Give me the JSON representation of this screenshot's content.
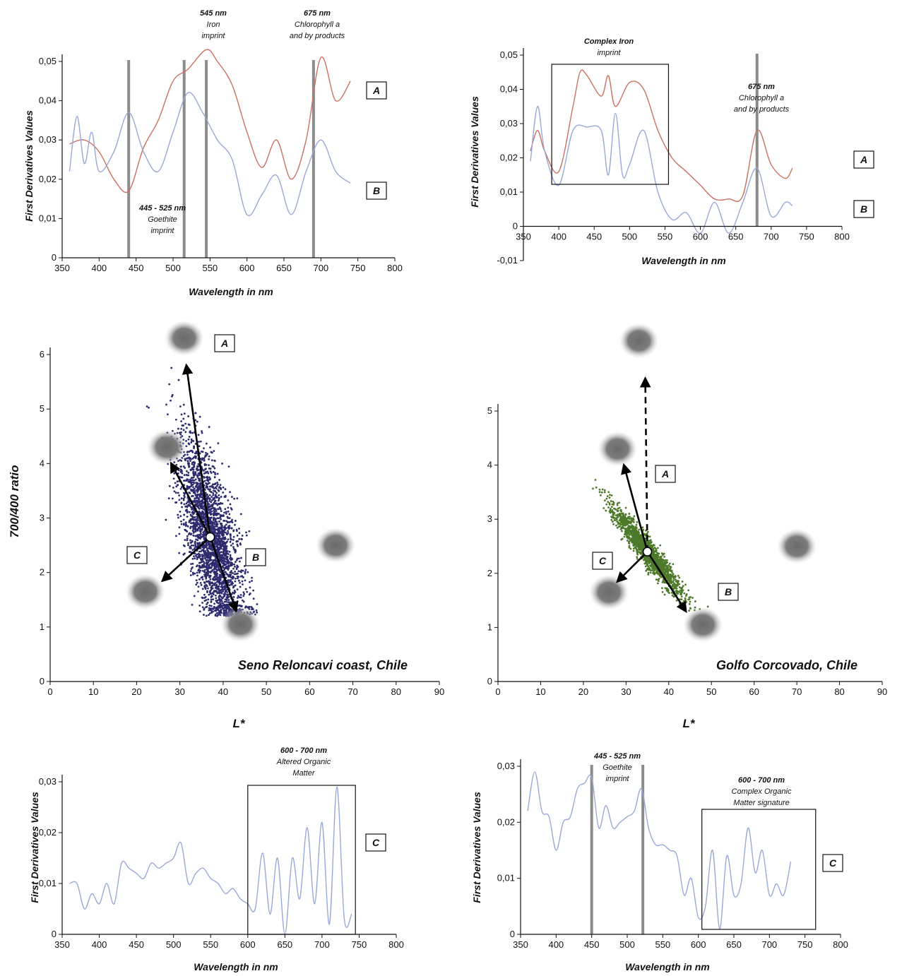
{
  "colors": {
    "curve_A": "#cc7060",
    "curve_B": "#9aa8d8",
    "curve_C": "#9aa8d8",
    "marker": "#8c8c8c",
    "scatter_left": "#2d2a6e",
    "scatter_right": "#4d7a2a",
    "blob": "#6e6e6e"
  },
  "chart_data": [
    {
      "type": "line",
      "panel": "top-left",
      "xlabel": "Wavelength in nm",
      "ylabel": "First Derivatives Values",
      "xlim": [
        350,
        800
      ],
      "ylim": [
        0,
        0.05
      ],
      "x_ticks": [
        "350",
        "400",
        "450",
        "500",
        "550",
        "600",
        "650",
        "700",
        "750",
        "800"
      ],
      "y_ticks": [
        "0",
        "0,01",
        "0,02",
        "0,03",
        "0,04",
        "0,05"
      ],
      "series": [
        {
          "name": "A",
          "x": [
            360,
            380,
            400,
            420,
            440,
            460,
            480,
            500,
            520,
            545,
            560,
            580,
            600,
            620,
            640,
            660,
            680,
            700,
            720,
            740
          ],
          "y": [
            0.029,
            0.03,
            0.027,
            0.02,
            0.017,
            0.028,
            0.035,
            0.045,
            0.048,
            0.053,
            0.05,
            0.044,
            0.032,
            0.023,
            0.03,
            0.02,
            0.03,
            0.051,
            0.04,
            0.045
          ]
        },
        {
          "name": "B",
          "x": [
            360,
            370,
            380,
            390,
            400,
            420,
            440,
            460,
            480,
            500,
            520,
            540,
            560,
            580,
            600,
            620,
            640,
            660,
            680,
            700,
            720,
            740
          ],
          "y": [
            0.022,
            0.036,
            0.024,
            0.032,
            0.022,
            0.027,
            0.037,
            0.027,
            0.022,
            0.032,
            0.042,
            0.037,
            0.03,
            0.025,
            0.011,
            0.016,
            0.021,
            0.011,
            0.022,
            0.03,
            0.022,
            0.019
          ]
        }
      ],
      "markers": [
        440,
        515,
        545,
        690
      ],
      "annotations": [
        {
          "title": "545 nm",
          "lines": [
            "Iron",
            "imprint"
          ]
        },
        {
          "title": "675 nm",
          "lines": [
            "Chlorophyll a",
            "and by products"
          ]
        },
        {
          "title": "445 - 525 nm",
          "lines": [
            "Goethite",
            "imprint"
          ]
        }
      ],
      "box_labels": [
        "A",
        "B"
      ]
    },
    {
      "type": "line",
      "panel": "top-right",
      "xlabel": "Wavelength in nm",
      "ylabel": "First Derivatives Values",
      "xlim": [
        350,
        800
      ],
      "ylim": [
        -0.01,
        0.05
      ],
      "x_ticks": [
        "350",
        "400",
        "450",
        "500",
        "550",
        "600",
        "650",
        "700",
        "750",
        "800"
      ],
      "y_ticks": [
        "-0,01",
        "0",
        "0,01",
        "0,02",
        "0,03",
        "0,04",
        "0,05"
      ],
      "series": [
        {
          "name": "A",
          "x": [
            360,
            370,
            380,
            400,
            420,
            430,
            440,
            460,
            470,
            480,
            500,
            520,
            540,
            560,
            580,
            600,
            620,
            640,
            660,
            680,
            700,
            720,
            730
          ],
          "y": [
            0.022,
            0.028,
            0.022,
            0.016,
            0.035,
            0.045,
            0.044,
            0.038,
            0.044,
            0.035,
            0.042,
            0.04,
            0.028,
            0.02,
            0.016,
            0.012,
            0.008,
            0.008,
            0.009,
            0.028,
            0.018,
            0.014,
            0.017
          ]
        },
        {
          "name": "B",
          "x": [
            360,
            370,
            380,
            400,
            420,
            440,
            460,
            470,
            480,
            490,
            500,
            520,
            540,
            560,
            580,
            600,
            620,
            640,
            660,
            680,
            700,
            720,
            730
          ],
          "y": [
            0.019,
            0.035,
            0.022,
            0.012,
            0.028,
            0.029,
            0.028,
            0.015,
            0.033,
            0.015,
            0.018,
            0.028,
            0.01,
            0.002,
            0.004,
            -0.002,
            0.007,
            -0.002,
            0.007,
            0.017,
            0.003,
            0.007,
            0.006
          ]
        }
      ],
      "markers": [
        680
      ],
      "annotations": [
        {
          "title": "Complex Iron",
          "lines": [
            "imprint"
          ]
        },
        {
          "title": "675 nm",
          "lines": [
            "Chlorophyll a",
            "and by products"
          ]
        }
      ],
      "box_labels": [
        "A",
        "B"
      ]
    },
    {
      "type": "scatter",
      "panel": "middle-left",
      "xlabel": "L*",
      "ylabel": "700/400 ratio",
      "xlim": [
        0,
        90
      ],
      "ylim": [
        0,
        6
      ],
      "x_ticks": [
        "0",
        "10",
        "20",
        "30",
        "40",
        "50",
        "60",
        "70",
        "80",
        "90"
      ],
      "y_ticks": [
        "0",
        "1",
        "2",
        "3",
        "4",
        "5",
        "6"
      ],
      "location": "Seno Reloncavi coast, Chile",
      "center": [
        37,
        2.65
      ],
      "arrows": [
        {
          "to": [
            31.5,
            5.8
          ],
          "dashed": false
        },
        {
          "to": [
            28,
            4.0
          ],
          "dashed": false
        },
        {
          "to": [
            26,
            1.85
          ],
          "dashed": false
        },
        {
          "to": [
            43,
            1.3
          ],
          "dashed": false
        }
      ],
      "blobs": [
        [
          31,
          6.3
        ],
        [
          27,
          4.3
        ],
        [
          22,
          1.65
        ],
        [
          44,
          1.05
        ],
        [
          66,
          2.5
        ]
      ],
      "box_labels": [
        "A",
        "B",
        "C"
      ]
    },
    {
      "type": "scatter",
      "panel": "middle-right",
      "xlabel": "L*",
      "ylabel": "",
      "xlim": [
        0,
        90
      ],
      "ylim": [
        0,
        5
      ],
      "x_ticks": [
        "0",
        "10",
        "20",
        "30",
        "40",
        "50",
        "60",
        "70",
        "80",
        "90"
      ],
      "y_ticks": [
        "0",
        "1",
        "2",
        "3",
        "4",
        "5"
      ],
      "location": "Golfo Corcovado, Chile",
      "center": [
        35,
        2.4
      ],
      "arrows": [
        {
          "to": [
            34.5,
            5.6
          ],
          "dashed": true
        },
        {
          "to": [
            29.5,
            4.0
          ],
          "dashed": false
        },
        {
          "to": [
            28,
            1.85
          ],
          "dashed": false
        },
        {
          "to": [
            44,
            1.3
          ],
          "dashed": false
        }
      ],
      "blobs": [
        [
          33,
          6.3
        ],
        [
          28,
          4.3
        ],
        [
          26,
          1.65
        ],
        [
          48,
          1.05
        ],
        [
          70,
          2.5
        ]
      ],
      "box_labels": [
        "A",
        "B",
        "C"
      ]
    },
    {
      "type": "line",
      "panel": "bottom-left",
      "xlabel": "Wavelength in nm",
      "ylabel": "First Derivatives Values",
      "xlim": [
        350,
        800
      ],
      "ylim": [
        0,
        0.03
      ],
      "x_ticks": [
        "350",
        "400",
        "450",
        "500",
        "550",
        "600",
        "650",
        "700",
        "750",
        "800"
      ],
      "y_ticks": [
        "0",
        "0,01",
        "0,02",
        "0,03"
      ],
      "series": [
        {
          "name": "C",
          "x": [
            360,
            370,
            380,
            390,
            400,
            410,
            420,
            430,
            440,
            450,
            460,
            470,
            480,
            490,
            500,
            510,
            520,
            530,
            540,
            550,
            560,
            570,
            580,
            590,
            600,
            610,
            620,
            630,
            640,
            650,
            660,
            670,
            680,
            690,
            700,
            710,
            720,
            730,
            740
          ],
          "y": [
            0.01,
            0.01,
            0.005,
            0.008,
            0.006,
            0.01,
            0.006,
            0.014,
            0.013,
            0.012,
            0.011,
            0.014,
            0.013,
            0.014,
            0.015,
            0.018,
            0.01,
            0.012,
            0.013,
            0.011,
            0.01,
            0.008,
            0.009,
            0.007,
            0.006,
            0.005,
            0.016,
            0.004,
            0.015,
            0.0,
            0.015,
            0.007,
            0.021,
            0.006,
            0.022,
            0.002,
            0.029,
            0.003,
            0.004
          ]
        }
      ],
      "annotations": [
        {
          "title": "600 - 700 nm",
          "lines": [
            "Altered Organic",
            "Matter"
          ]
        }
      ],
      "box_labels": [
        "C"
      ]
    },
    {
      "type": "line",
      "panel": "bottom-right",
      "xlabel": "Wavelength in nm",
      "ylabel": "First Derivatives Values",
      "xlim": [
        350,
        800
      ],
      "ylim": [
        0,
        0.03
      ],
      "x_ticks": [
        "350",
        "400",
        "450",
        "500",
        "550",
        "600",
        "650",
        "700",
        "750",
        "800"
      ],
      "y_ticks": [
        "0",
        "0,01",
        "0,02",
        "0,03"
      ],
      "series": [
        {
          "name": "C",
          "x": [
            360,
            370,
            380,
            390,
            400,
            410,
            420,
            430,
            440,
            450,
            460,
            470,
            480,
            490,
            500,
            510,
            520,
            530,
            540,
            550,
            560,
            570,
            580,
            590,
            600,
            610,
            620,
            630,
            640,
            650,
            660,
            670,
            680,
            690,
            700,
            710,
            720,
            730
          ],
          "y": [
            0.022,
            0.029,
            0.022,
            0.021,
            0.015,
            0.02,
            0.021,
            0.026,
            0.027,
            0.028,
            0.019,
            0.023,
            0.019,
            0.02,
            0.021,
            0.022,
            0.026,
            0.019,
            0.016,
            0.016,
            0.015,
            0.014,
            0.007,
            0.01,
            0.003,
            0.005,
            0.015,
            0.001,
            0.014,
            0.007,
            0.009,
            0.019,
            0.011,
            0.015,
            0.007,
            0.009,
            0.007,
            0.013
          ]
        }
      ],
      "markers": [
        450,
        522
      ],
      "annotations": [
        {
          "title": "445 - 525 nm",
          "lines": [
            "Goethite",
            "imprint"
          ]
        },
        {
          "title": "600 - 700 nm",
          "lines": [
            "Complex Organic",
            "Matter signature"
          ]
        }
      ],
      "box_labels": [
        "C"
      ]
    }
  ]
}
